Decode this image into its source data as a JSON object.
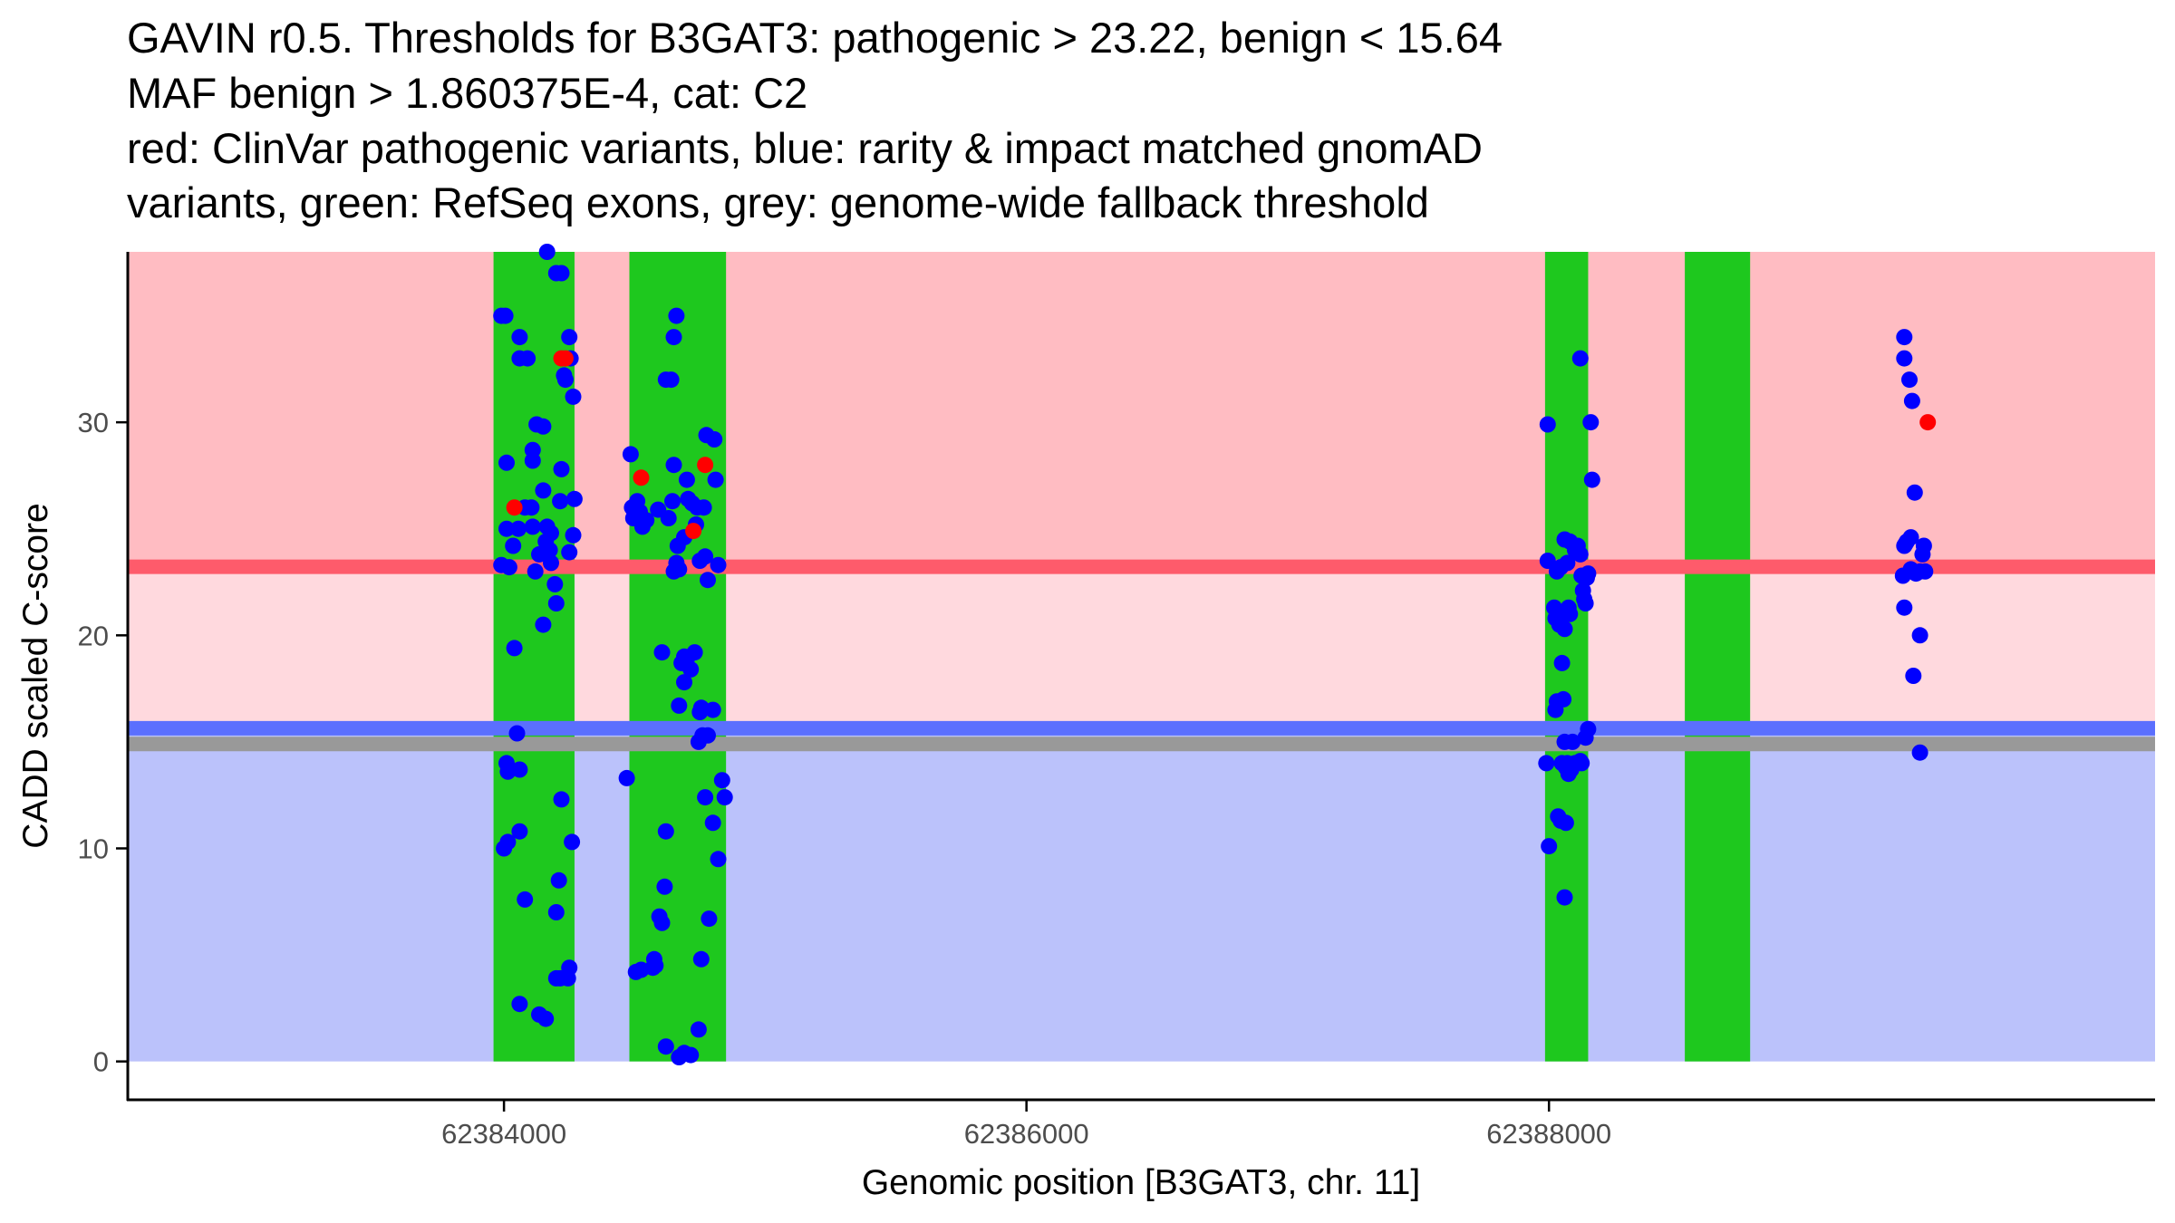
{
  "chart_data": {
    "type": "scatter",
    "title_lines": [
      "GAVIN r0.5. Thresholds for B3GAT3: pathogenic > 23.22, benign < 15.64",
      "MAF benign > 1.860375E-4, cat: C2",
      "red: ClinVar pathogenic variants, blue: rarity & impact matched gnomAD",
      "variants, green: RefSeq exons, grey: genome-wide fallback threshold"
    ],
    "xlabel": "Genomic position [B3GAT3, chr. 11]",
    "ylabel": "CADD scaled C-score",
    "xlim": [
      62382560,
      62390320
    ],
    "ylim": [
      -1.8,
      38
    ],
    "xticks": [
      62384000,
      62386000,
      62388000
    ],
    "xtick_labels": [
      "62384000",
      "62386000",
      "62388000"
    ],
    "yticks": [
      0,
      10,
      20,
      30
    ],
    "ytick_labels": [
      "0",
      "10",
      "20",
      "30"
    ],
    "colors": {
      "pathogenic_region": "#ffbcc2",
      "intermediate_region": "#ffd9de",
      "benign_region": "#bbc2fb",
      "pathogenic_threshold_line": "#fe5b6b",
      "benign_threshold_line": "#5b6ffe",
      "fallback_threshold_line": "#999999",
      "exon": "#1ec81e",
      "benign_point": "#0000ff",
      "pathogenic_point": "#ff0000",
      "axis": "#000000"
    },
    "regions": [
      {
        "name": "pathogenic",
        "y0": 23.22,
        "y1": 38
      },
      {
        "name": "intermediate",
        "y0": 15.64,
        "y1": 23.22
      },
      {
        "name": "benign",
        "y0": 0,
        "y1": 15.64
      }
    ],
    "thresholds": [
      {
        "name": "pathogenic",
        "value": 23.22
      },
      {
        "name": "benign",
        "value": 15.64
      },
      {
        "name": "fallback",
        "value": 14.9
      }
    ],
    "exons": [
      {
        "start": 62383960,
        "end": 62384270
      },
      {
        "start": 62384480,
        "end": 62384850
      },
      {
        "start": 62387985,
        "end": 62388150
      },
      {
        "start": 62388520,
        "end": 62388770
      }
    ],
    "series": [
      {
        "name": "gnomAD benign variants",
        "color": "#0000ff",
        "points": [
          [
            62383990,
            35.0
          ],
          [
            62384005,
            35.0
          ],
          [
            62384060,
            34.0
          ],
          [
            62384090,
            33.0
          ],
          [
            62384060,
            33.0
          ],
          [
            62384010,
            28.1
          ],
          [
            62384010,
            25.0
          ],
          [
            62384035,
            24.2
          ],
          [
            62383990,
            23.3
          ],
          [
            62384020,
            23.2
          ],
          [
            62384055,
            25.0
          ],
          [
            62384080,
            26.0
          ],
          [
            62384110,
            28.2
          ],
          [
            62384110,
            28.7
          ],
          [
            62384105,
            26.0
          ],
          [
            62384110,
            25.1
          ],
          [
            62384120,
            23.0
          ],
          [
            62384135,
            23.8
          ],
          [
            62384150,
            26.8
          ],
          [
            62384160,
            24.4
          ],
          [
            62384165,
            25.1
          ],
          [
            62384175,
            24.0
          ],
          [
            62384180,
            23.4
          ],
          [
            62384195,
            22.4
          ],
          [
            62384200,
            21.5
          ],
          [
            62384215,
            26.3
          ],
          [
            62384220,
            27.8
          ],
          [
            62384235,
            32.0
          ],
          [
            62384230,
            32.2
          ],
          [
            62384250,
            34.0
          ],
          [
            62384255,
            33.0
          ],
          [
            62384265,
            31.2
          ],
          [
            62384270,
            26.4
          ],
          [
            62384265,
            24.7
          ],
          [
            62384250,
            23.9
          ],
          [
            62384200,
            37.0
          ],
          [
            62384220,
            37.0
          ],
          [
            62384165,
            38.0
          ],
          [
            62384150,
            20.5
          ],
          [
            62384125,
            29.9
          ],
          [
            62384150,
            29.8
          ],
          [
            62384040,
            19.4
          ],
          [
            62384050,
            15.4
          ],
          [
            62384010,
            14.0
          ],
          [
            62384015,
            13.6
          ],
          [
            62384060,
            13.7
          ],
          [
            62384000,
            10.0
          ],
          [
            62384015,
            10.3
          ],
          [
            62384060,
            10.8
          ],
          [
            62384080,
            7.6
          ],
          [
            62384060,
            2.7
          ],
          [
            62384135,
            2.2
          ],
          [
            62384160,
            2.0
          ],
          [
            62384200,
            3.9
          ],
          [
            62384215,
            3.9
          ],
          [
            62384245,
            3.9
          ],
          [
            62384250,
            4.4
          ],
          [
            62384200,
            7.0
          ],
          [
            62384210,
            8.5
          ],
          [
            62384220,
            12.3
          ],
          [
            62384260,
            10.3
          ],
          [
            62384180,
            24.8
          ],
          [
            62384485,
            28.5
          ],
          [
            62384490,
            26.0
          ],
          [
            62384495,
            25.5
          ],
          [
            62384510,
            26.3
          ],
          [
            62384520,
            25.8
          ],
          [
            62384530,
            25.1
          ],
          [
            62384545,
            25.4
          ],
          [
            62384590,
            25.9
          ],
          [
            62384630,
            25.5
          ],
          [
            62384645,
            26.3
          ],
          [
            62384650,
            28.0
          ],
          [
            62384665,
            24.2
          ],
          [
            62384690,
            24.6
          ],
          [
            62384700,
            27.3
          ],
          [
            62384705,
            26.4
          ],
          [
            62384720,
            26.2
          ],
          [
            62384740,
            26.0
          ],
          [
            62384735,
            25.2
          ],
          [
            62384765,
            26.0
          ],
          [
            62384775,
            29.4
          ],
          [
            62384780,
            22.6
          ],
          [
            62384805,
            29.2
          ],
          [
            62384810,
            27.3
          ],
          [
            62384820,
            23.3
          ],
          [
            62384750,
            23.5
          ],
          [
            62384770,
            23.7
          ],
          [
            62384650,
            23.0
          ],
          [
            62384660,
            23.4
          ],
          [
            62384670,
            23.1
          ],
          [
            62384620,
            32.0
          ],
          [
            62384640,
            32.0
          ],
          [
            62384650,
            34.0
          ],
          [
            62384660,
            35.0
          ],
          [
            62384670,
            16.7
          ],
          [
            62384605,
            19.2
          ],
          [
            62384680,
            18.7
          ],
          [
            62384690,
            19.0
          ],
          [
            62384700,
            18.9
          ],
          [
            62384715,
            18.4
          ],
          [
            62384730,
            19.2
          ],
          [
            62384690,
            17.8
          ],
          [
            62384750,
            16.4
          ],
          [
            62384755,
            16.6
          ],
          [
            62384760,
            15.3
          ],
          [
            62384745,
            15.0
          ],
          [
            62384780,
            15.3
          ],
          [
            62384800,
            16.5
          ],
          [
            62384835,
            13.2
          ],
          [
            62384845,
            12.4
          ],
          [
            62384770,
            12.4
          ],
          [
            62384800,
            11.2
          ],
          [
            62384820,
            9.5
          ],
          [
            62384785,
            6.7
          ],
          [
            62384755,
            4.8
          ],
          [
            62384620,
            10.8
          ],
          [
            62384615,
            8.2
          ],
          [
            62384595,
            6.8
          ],
          [
            62384605,
            6.5
          ],
          [
            62384575,
            4.8
          ],
          [
            62384570,
            4.4
          ],
          [
            62384580,
            4.5
          ],
          [
            62384505,
            4.2
          ],
          [
            62384470,
            13.3
          ],
          [
            62384620,
            0.7
          ],
          [
            62384670,
            0.2
          ],
          [
            62384690,
            0.4
          ],
          [
            62384715,
            0.3
          ],
          [
            62384745,
            1.5
          ],
          [
            62384525,
            4.3
          ],
          [
            62387995,
            29.9
          ],
          [
            62388120,
            33.0
          ],
          [
            62388160,
            30.0
          ],
          [
            62388165,
            27.3
          ],
          [
            62387995,
            23.5
          ],
          [
            62388030,
            23.0
          ],
          [
            62388045,
            23.2
          ],
          [
            62388060,
            24.5
          ],
          [
            62388070,
            23.4
          ],
          [
            62388080,
            24.4
          ],
          [
            62388100,
            24.0
          ],
          [
            62388120,
            23.8
          ],
          [
            62388125,
            22.8
          ],
          [
            62388130,
            22.1
          ],
          [
            62388135,
            21.7
          ],
          [
            62388140,
            21.5
          ],
          [
            62388145,
            22.7
          ],
          [
            62388150,
            22.9
          ],
          [
            62388020,
            21.3
          ],
          [
            62388025,
            20.8
          ],
          [
            62388035,
            21.0
          ],
          [
            62388040,
            20.5
          ],
          [
            62388060,
            20.3
          ],
          [
            62388075,
            21.3
          ],
          [
            62388080,
            21.0
          ],
          [
            62388050,
            18.7
          ],
          [
            62388030,
            16.9
          ],
          [
            62388025,
            16.5
          ],
          [
            62388055,
            17.0
          ],
          [
            62388060,
            15.0
          ],
          [
            62388050,
            14.0
          ],
          [
            62388065,
            13.8
          ],
          [
            62388070,
            14.0
          ],
          [
            62388075,
            13.5
          ],
          [
            62388085,
            13.7
          ],
          [
            62388100,
            14.0
          ],
          [
            62388120,
            14.1
          ],
          [
            62388125,
            14.0
          ],
          [
            62388140,
            15.2
          ],
          [
            62388150,
            15.6
          ],
          [
            62387990,
            14.0
          ],
          [
            62388035,
            11.5
          ],
          [
            62388045,
            11.3
          ],
          [
            62388065,
            11.2
          ],
          [
            62388000,
            10.1
          ],
          [
            62388060,
            7.7
          ],
          [
            62388090,
            15.0
          ],
          [
            62388110,
            24.2
          ],
          [
            62389360,
            34.0
          ],
          [
            62389360,
            33.0
          ],
          [
            62389380,
            32.0
          ],
          [
            62389390,
            31.0
          ],
          [
            62389400,
            26.7
          ],
          [
            62389360,
            24.2
          ],
          [
            62389370,
            24.4
          ],
          [
            62389385,
            24.6
          ],
          [
            62389355,
            22.8
          ],
          [
            62389385,
            23.1
          ],
          [
            62389405,
            22.9
          ],
          [
            62389420,
            23.0
          ],
          [
            62389430,
            23.8
          ],
          [
            62389435,
            24.2
          ],
          [
            62389440,
            23.0
          ],
          [
            62389360,
            21.3
          ],
          [
            62389420,
            20.0
          ],
          [
            62389395,
            18.1
          ],
          [
            62389420,
            14.5
          ],
          [
            62389365,
            24.3
          ]
        ]
      },
      {
        "name": "ClinVar pathogenic variants",
        "color": "#ff0000",
        "points": [
          [
            62384040,
            26.0
          ],
          [
            62384235,
            33.0
          ],
          [
            62384220,
            33.0
          ],
          [
            62384525,
            27.4
          ],
          [
            62384725,
            24.9
          ],
          [
            62384770,
            28.0
          ],
          [
            62389450,
            30.0
          ]
        ]
      }
    ]
  }
}
